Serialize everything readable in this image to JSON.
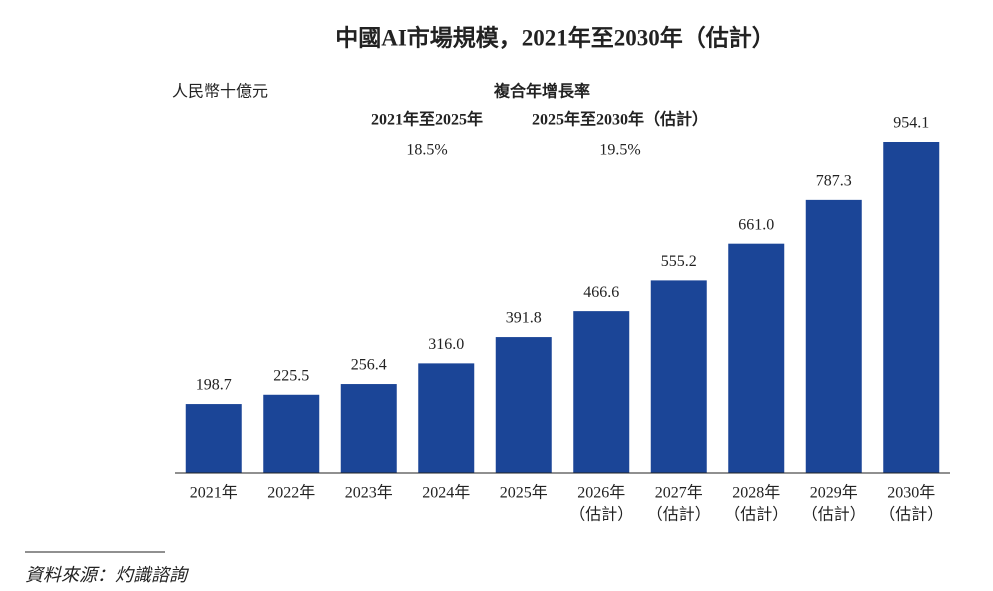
{
  "chart_data": {
    "type": "bar",
    "title": "中國AI市場規模，2021年至2030年（估計）",
    "unit_label": "人民幣十億元",
    "annotation": {
      "title": "複合年增長率",
      "periods": [
        {
          "label": "2021年至2025年",
          "rate": {
            "value": 18.5,
            "label": "18.5%"
          }
        },
        {
          "label": "2025年至2030年（估計）",
          "rate": {
            "value": 19.5,
            "label": "19.5%"
          }
        }
      ]
    },
    "categories": [
      [
        "2021年"
      ],
      [
        "2022年"
      ],
      [
        "2023年"
      ],
      [
        "2024年"
      ],
      [
        "2025年"
      ],
      [
        "2026年",
        "（估計）"
      ],
      [
        "2027年",
        "（估計）"
      ],
      [
        "2028年",
        "（估計）"
      ],
      [
        "2029年",
        "（估計）"
      ],
      [
        "2030年",
        "（估計）"
      ]
    ],
    "values": [
      198.7,
      225.5,
      256.4,
      316.0,
      391.8,
      466.6,
      555.2,
      661.0,
      787.3,
      954.1
    ],
    "value_labels": [
      "198.7",
      "225.5",
      "256.4",
      "316.0",
      "391.8",
      "466.6",
      "555.2",
      "661.0",
      "787.3",
      "954.1"
    ],
    "color": "#1b4597",
    "source": "資料來源：灼識諮詢"
  }
}
